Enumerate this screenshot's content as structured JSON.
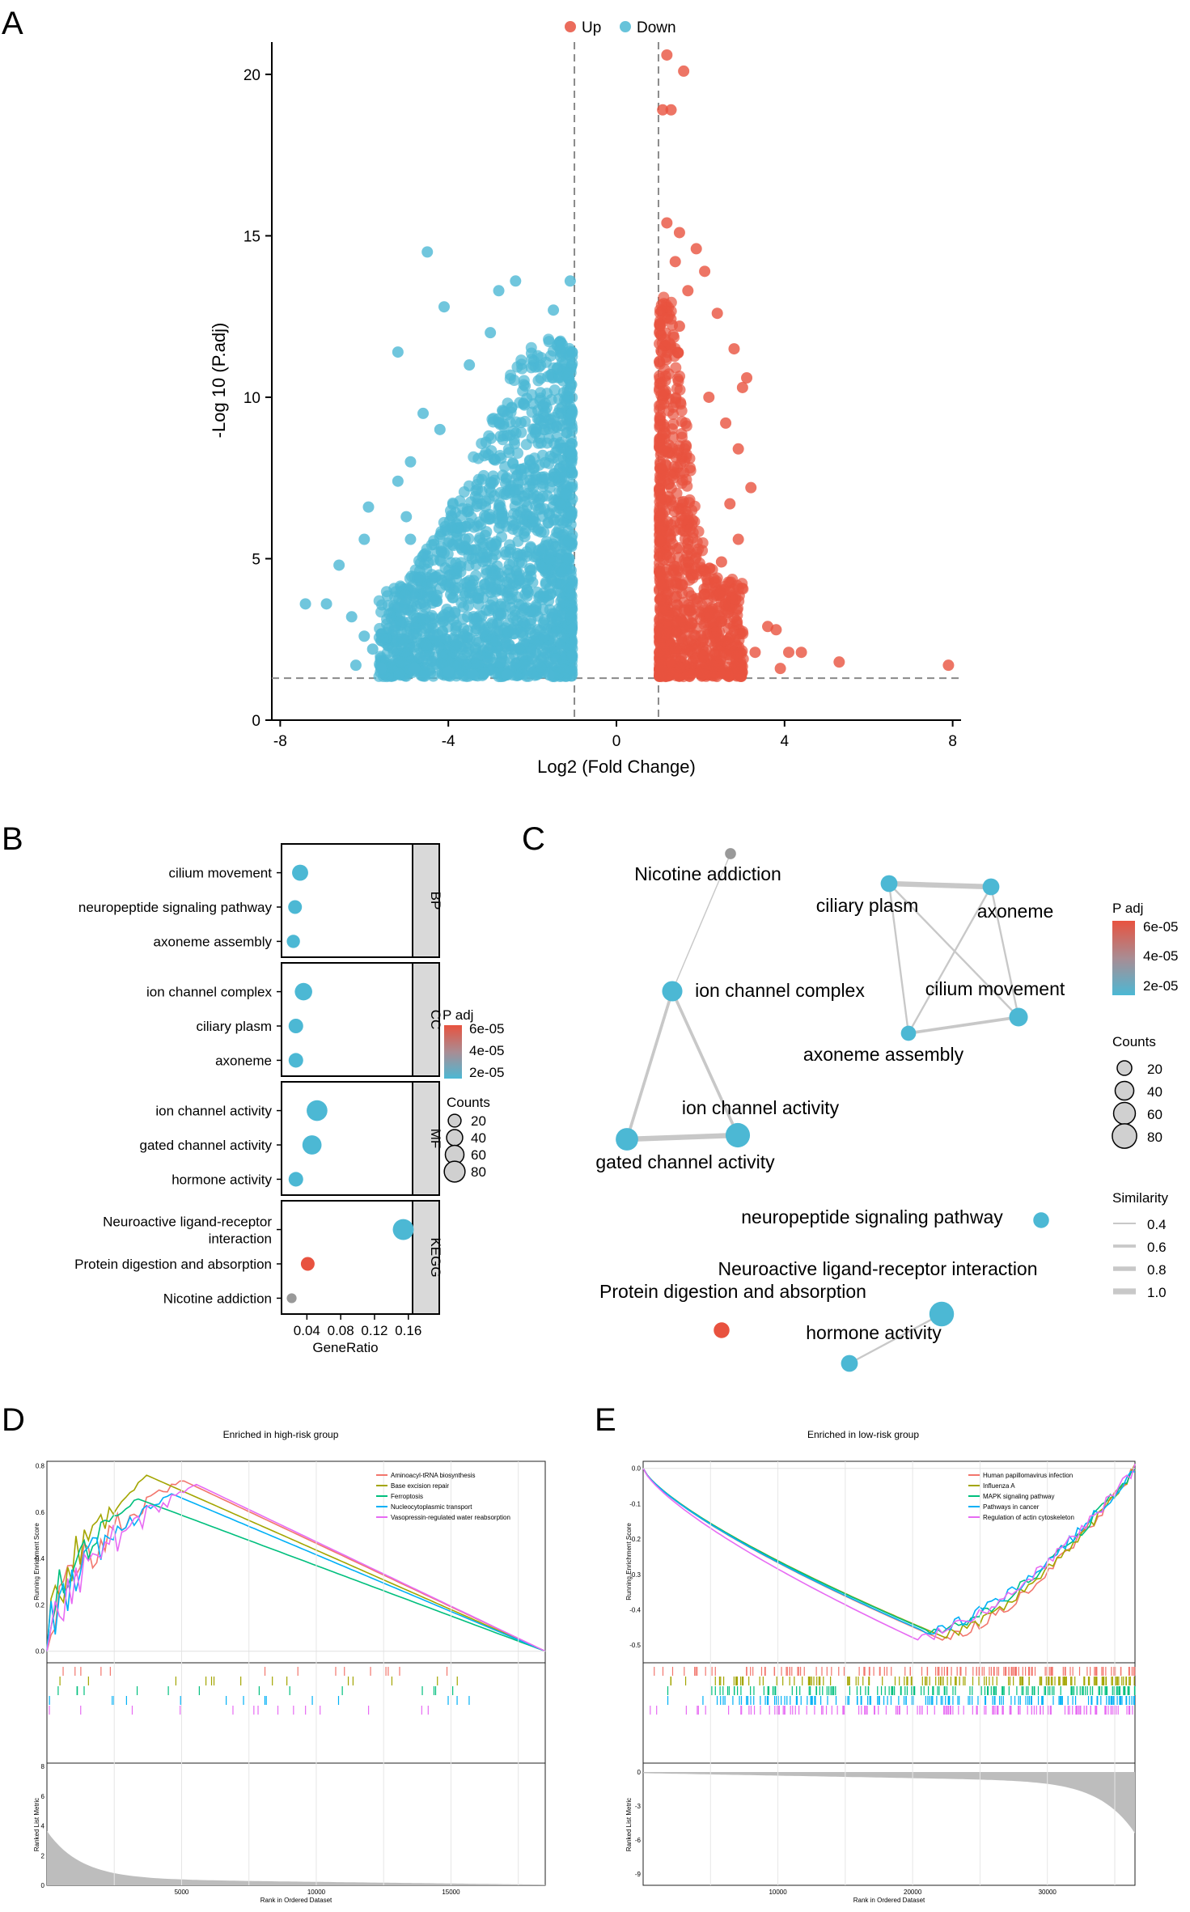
{
  "figure_panels": [
    "A",
    "B",
    "C",
    "D",
    "E"
  ],
  "colors": {
    "up": "#e8523f",
    "down": "#4cb8d4",
    "grey_strip": "#d9d9d9",
    "padj_high": "#e8523f",
    "padj_low": "#4cb8d4"
  },
  "chart_data": [
    {
      "panel": "A",
      "type": "scatter",
      "title": "",
      "xlabel": "Log2 (Fold Change)",
      "ylabel": "-Log 10 (P.adj)",
      "xlim": [
        -8.2,
        8.2
      ],
      "ylim": [
        0,
        21
      ],
      "xticks": [
        "-8",
        "-4",
        "0",
        "4",
        "8"
      ],
      "yticks": [
        "0",
        "5",
        "10",
        "15",
        "20"
      ],
      "legend": {
        "position": "top",
        "entries": [
          "Up",
          "Down"
        ]
      },
      "thresholds": {
        "log2fc": [
          -1,
          1
        ],
        "neglog10_padj": 1.3
      },
      "series": [
        {
          "name": "Up",
          "points": [
            [
              1.2,
              20.6
            ],
            [
              1.6,
              20.1
            ],
            [
              1.1,
              18.9
            ],
            [
              1.3,
              18.9
            ],
            [
              1.2,
              15.4
            ],
            [
              1.5,
              15.1
            ],
            [
              1.9,
              14.6
            ],
            [
              1.4,
              14.2
            ],
            [
              2.1,
              13.9
            ],
            [
              1.7,
              13.3
            ],
            [
              2.4,
              12.6
            ],
            [
              1.5,
              12.2
            ],
            [
              2.8,
              11.5
            ],
            [
              3.0,
              10.3
            ],
            [
              3.1,
              10.6
            ],
            [
              2.2,
              10.0
            ],
            [
              2.6,
              9.2
            ],
            [
              2.9,
              8.4
            ],
            [
              3.2,
              7.2
            ],
            [
              2.7,
              6.7
            ],
            [
              2.9,
              5.6
            ],
            [
              2.5,
              4.9
            ],
            [
              2.7,
              4.0
            ],
            [
              3.6,
              2.9
            ],
            [
              3.8,
              2.8
            ],
            [
              4.1,
              2.1
            ],
            [
              4.4,
              2.1
            ],
            [
              5.3,
              1.8
            ],
            [
              7.9,
              1.7
            ],
            [
              3.3,
              2.1
            ],
            [
              3.9,
              1.6
            ]
          ]
        },
        {
          "name": "Down",
          "points": [
            [
              -4.5,
              14.5
            ],
            [
              -4.1,
              12.8
            ],
            [
              -2.4,
              13.6
            ],
            [
              -1.1,
              13.6
            ],
            [
              -2.8,
              13.3
            ],
            [
              -1.5,
              12.7
            ],
            [
              -3.0,
              12.0
            ],
            [
              -3.5,
              11.0
            ],
            [
              -5.2,
              11.4
            ],
            [
              -4.6,
              9.5
            ],
            [
              -4.2,
              9.0
            ],
            [
              -4.9,
              8.0
            ],
            [
              -5.2,
              7.4
            ],
            [
              -5.9,
              6.6
            ],
            [
              -6.0,
              5.6
            ],
            [
              -5.0,
              6.3
            ],
            [
              -4.9,
              5.6
            ],
            [
              -6.6,
              4.8
            ],
            [
              -7.4,
              3.6
            ],
            [
              -6.9,
              3.6
            ],
            [
              -6.3,
              3.2
            ],
            [
              -6.0,
              2.6
            ],
            [
              -5.8,
              2.2
            ],
            [
              -6.2,
              1.7
            ],
            [
              -5.6,
              1.6
            ],
            [
              -4.8,
              1.6
            ],
            [
              -4.0,
              1.5
            ],
            [
              -3.4,
              1.4
            ],
            [
              -2.6,
              1.4
            ],
            [
              -1.6,
              1.4
            ]
          ]
        }
      ]
    },
    {
      "panel": "B",
      "type": "scatter",
      "title": "",
      "xlabel": "GeneRatio",
      "xticks": [
        "0.04",
        "0.08",
        "0.12",
        "0.16"
      ],
      "xlim": [
        0.01,
        0.165
      ],
      "facets": [
        "BP",
        "CC",
        "MF",
        "KEGG"
      ],
      "legend_padj": {
        "title": "P adj",
        "labels": [
          "6e-05",
          "4e-05",
          "2e-05"
        ]
      },
      "legend_counts": {
        "title": "Counts",
        "labels": [
          "20",
          "40",
          "60",
          "80"
        ]
      },
      "terms": [
        {
          "facet": "BP",
          "label": "cilium movement",
          "generatio": 0.032,
          "padj": 1.2e-05,
          "count": 40
        },
        {
          "facet": "BP",
          "label": "neuropeptide signaling pathway",
          "generatio": 0.026,
          "padj": 1.2e-05,
          "count": 25
        },
        {
          "facet": "BP",
          "label": "axoneme assembly",
          "generatio": 0.024,
          "padj": 1.2e-05,
          "count": 22
        },
        {
          "facet": "CC",
          "label": "ion channel complex",
          "generatio": 0.036,
          "padj": 1.2e-05,
          "count": 50
        },
        {
          "facet": "CC",
          "label": "ciliary plasm",
          "generatio": 0.027,
          "padj": 1.2e-05,
          "count": 30
        },
        {
          "facet": "CC",
          "label": "axoneme",
          "generatio": 0.027,
          "padj": 1.2e-05,
          "count": 30
        },
        {
          "facet": "MF",
          "label": "ion channel activity",
          "generatio": 0.052,
          "padj": 1.2e-05,
          "count": 80
        },
        {
          "facet": "MF",
          "label": "gated channel activity",
          "generatio": 0.046,
          "padj": 1.2e-05,
          "count": 65
        },
        {
          "facet": "MF",
          "label": "hormone activity",
          "generatio": 0.027,
          "padj": 1.2e-05,
          "count": 30
        },
        {
          "facet": "KEGG",
          "label": "Neuroactive ligand-receptor interaction",
          "generatio": 0.154,
          "padj": 1.2e-05,
          "count": 82
        },
        {
          "facet": "KEGG",
          "label": "Protein digestion and absorption",
          "generatio": 0.041,
          "padj": 6.5e-05,
          "count": 25
        },
        {
          "facet": "KEGG",
          "label": "Nicotine addiction",
          "generatio": 0.022,
          "padj": 3e-05,
          "count": 8
        }
      ]
    },
    {
      "panel": "C",
      "type": "network",
      "title": "",
      "legend_padj": {
        "title": "P adj",
        "labels": [
          "6e-05",
          "4e-05",
          "2e-05"
        ]
      },
      "legend_counts": {
        "title": "Counts",
        "labels": [
          "20",
          "40",
          "60",
          "80"
        ]
      },
      "legend_similarity": {
        "title": "Similarity",
        "labels": [
          "0.4",
          "0.6",
          "0.8",
          "1.0"
        ]
      },
      "nodes": [
        {
          "label": "Nicotine addiction",
          "padj": 3e-05,
          "count": 8
        },
        {
          "label": "ciliary plasm",
          "padj": 1.2e-05,
          "count": 30
        },
        {
          "label": "axoneme",
          "padj": 1.2e-05,
          "count": 30
        },
        {
          "label": "ion channel complex",
          "padj": 1.2e-05,
          "count": 50
        },
        {
          "label": "cilium movement",
          "padj": 1.2e-05,
          "count": 40
        },
        {
          "label": "axoneme assembly",
          "padj": 1.2e-05,
          "count": 22
        },
        {
          "label": "ion channel activity",
          "padj": 1.2e-05,
          "count": 80
        },
        {
          "label": "gated channel activity",
          "padj": 1.2e-05,
          "count": 65
        },
        {
          "label": "neuropeptide signaling pathway",
          "padj": 1.2e-05,
          "count": 25
        },
        {
          "label": "Neuroactive ligand-receptor interaction",
          "padj": 1.2e-05,
          "count": 82
        },
        {
          "label": "Protein digestion and absorption",
          "padj": 6.5e-05,
          "count": 25
        },
        {
          "label": "hormone activity",
          "padj": 1.2e-05,
          "count": 30
        }
      ],
      "edges": [
        {
          "source": "ciliary plasm",
          "target": "axoneme",
          "similarity": 0.9
        },
        {
          "source": "ciliary plasm",
          "target": "cilium movement",
          "similarity": 0.45
        },
        {
          "source": "ciliary plasm",
          "target": "axoneme assembly",
          "similarity": 0.45
        },
        {
          "source": "axoneme",
          "target": "cilium movement",
          "similarity": 0.45
        },
        {
          "source": "axoneme",
          "target": "axoneme assembly",
          "similarity": 0.45
        },
        {
          "source": "axoneme assembly",
          "target": "cilium movement",
          "similarity": 0.6
        },
        {
          "source": "ion channel complex",
          "target": "ion channel activity",
          "similarity": 0.6
        },
        {
          "source": "ion channel complex",
          "target": "gated channel activity",
          "similarity": 0.6
        },
        {
          "source": "ion channel activity",
          "target": "gated channel activity",
          "similarity": 0.9
        },
        {
          "source": "ion channel complex",
          "target": "Nicotine addiction",
          "similarity": 0.35
        },
        {
          "source": "Neuroactive ligand-receptor interaction",
          "target": "hormone activity",
          "similarity": 0.45
        }
      ]
    },
    {
      "panel": "D",
      "type": "line",
      "title": "Enriched in high-risk group",
      "xlabel": "Rank in Ordered Dataset",
      "ylabel": "Running Enrichment Score",
      "ylabel2": "Ranked List Metric",
      "xticks": [
        "5000",
        "10000",
        "15000"
      ],
      "yticks": [
        "0.0",
        "0.2",
        "0.4",
        "0.6",
        "0.8"
      ],
      "yticks2": [
        "0",
        "2",
        "4",
        "6",
        "8"
      ],
      "xlim": [
        0,
        18500
      ],
      "series": [
        {
          "name": "Aminoacyl-tRNA biosynthesis",
          "color": "#f2766d"
        },
        {
          "name": "Base excision repair",
          "color": "#a3a500"
        },
        {
          "name": "Ferroptosis",
          "color": "#00bf7d"
        },
        {
          "name": "Nucleocytoplasmic transport",
          "color": "#00b0f6"
        },
        {
          "name": "Vasopressin-regulated water reabsorption",
          "color": "#e76bf3"
        }
      ]
    },
    {
      "panel": "E",
      "type": "line",
      "title": "Enriched in low-risk group",
      "xlabel": "Rank in Ordered Dataset",
      "ylabel": "Running Enrichment Score",
      "ylabel2": "Ranked List Metric",
      "xticks": [
        "10000",
        "20000",
        "30000"
      ],
      "yticks": [
        "0.0",
        "-0.1",
        "-0.2",
        "-0.3",
        "-0.4",
        "-0.5"
      ],
      "yticks2": [
        "0",
        "-3",
        "-6",
        "-9"
      ],
      "xlim": [
        0,
        36500
      ],
      "series": [
        {
          "name": "Human papillomavirus infection",
          "color": "#f2766d"
        },
        {
          "name": "Influenza A",
          "color": "#a3a500"
        },
        {
          "name": "MAPK signaling pathway",
          "color": "#00bf7d"
        },
        {
          "name": "Pathways in cancer",
          "color": "#00b0f6"
        },
        {
          "name": "Regulation of actin cytoskeleton",
          "color": "#e76bf3"
        }
      ]
    }
  ]
}
